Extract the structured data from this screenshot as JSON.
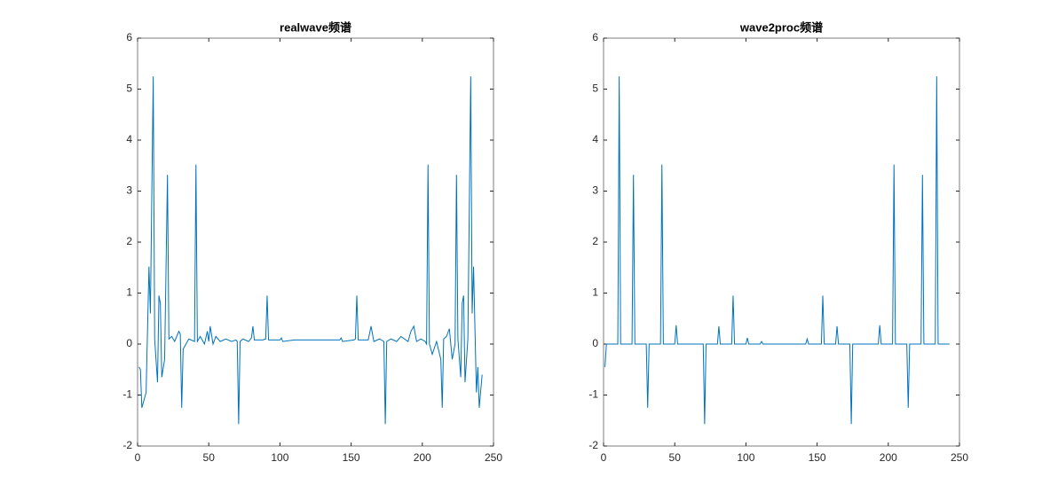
{
  "chart_data": [
    {
      "type": "line",
      "title": "realwave频谱",
      "x": [
        1,
        2,
        3,
        6,
        8,
        9,
        11,
        12,
        14,
        15,
        16,
        17,
        19,
        21,
        22,
        24,
        26,
        29,
        30,
        31,
        32,
        34,
        36,
        40,
        41,
        42,
        44,
        47,
        49,
        50,
        51,
        53,
        55,
        58,
        62,
        66,
        69,
        70,
        71,
        72,
        74,
        78,
        80,
        81,
        82,
        88,
        90,
        91,
        92,
        100,
        101,
        102,
        110,
        120,
        130,
        142,
        143,
        144,
        152,
        153,
        154,
        155,
        162,
        164,
        166,
        170,
        173,
        174,
        175,
        178,
        182,
        185,
        190,
        192,
        194,
        196,
        199,
        202,
        203,
        204,
        205,
        207,
        210,
        213,
        214,
        215,
        217,
        219,
        221,
        223,
        224,
        225,
        227,
        228,
        229,
        230,
        232,
        234,
        235,
        236,
        238,
        239,
        240,
        242
      ],
      "series": [
        {
          "color": "#0072bd",
          "values": [
            -0.45,
            -0.5,
            -1.25,
            -0.95,
            1.52,
            0.6,
            5.25,
            0.1,
            -0.75,
            0.95,
            0.8,
            -0.65,
            -0.3,
            3.32,
            0.1,
            0.15,
            0.05,
            0.25,
            0.2,
            -1.25,
            -0.1,
            0.0,
            0.1,
            0.05,
            3.52,
            0.05,
            0.15,
            0.0,
            0.25,
            0.05,
            0.35,
            0.0,
            0.15,
            0.05,
            0.1,
            0.05,
            0.08,
            0.05,
            -1.57,
            0.05,
            0.1,
            0.05,
            0.12,
            0.35,
            0.08,
            0.08,
            0.1,
            0.95,
            0.08,
            0.08,
            0.12,
            0.05,
            0.08,
            0.08,
            0.08,
            0.08,
            0.12,
            0.05,
            0.08,
            0.1,
            0.95,
            0.08,
            0.08,
            0.35,
            0.05,
            0.1,
            0.05,
            -1.57,
            0.05,
            0.1,
            0.05,
            0.15,
            0.05,
            0.25,
            0.35,
            0.05,
            0.1,
            0.05,
            0.0,
            3.52,
            0.0,
            -0.2,
            0.05,
            -0.3,
            -1.25,
            0.1,
            0.15,
            0.3,
            -0.3,
            0.0,
            3.32,
            0.1,
            -0.65,
            0.8,
            0.95,
            -0.75,
            0.1,
            5.25,
            0.6,
            1.52,
            -0.95,
            -0.45,
            -1.25,
            -0.6
          ]
        }
      ],
      "xlim": [
        0,
        250
      ],
      "xticks": [
        0,
        50,
        100,
        150,
        200,
        250
      ],
      "ylim": [
        -2,
        6
      ],
      "yticks": [
        -2,
        -1,
        0,
        1,
        2,
        3,
        4,
        5,
        6
      ]
    },
    {
      "type": "line",
      "title": "wave2proc频谱",
      "x": [
        1,
        2,
        10,
        11,
        12,
        20,
        21,
        22,
        30,
        31,
        32,
        40,
        41,
        42,
        50,
        51,
        52,
        70,
        71,
        72,
        80,
        81,
        82,
        90,
        91,
        92,
        100,
        101,
        102,
        110,
        111,
        112,
        142,
        143,
        144,
        153,
        154,
        155,
        163,
        164,
        165,
        173,
        174,
        175,
        193,
        194,
        195,
        203,
        204,
        205,
        213,
        214,
        215,
        223,
        224,
        225,
        233,
        234,
        235,
        243
      ],
      "series": [
        {
          "color": "#0072bd",
          "values": [
            -0.45,
            0,
            0,
            5.25,
            0,
            0,
            3.32,
            0,
            0,
            -1.25,
            0,
            0,
            3.52,
            0,
            0,
            0.37,
            0,
            0,
            -1.57,
            0,
            0,
            0.35,
            0,
            0,
            0.95,
            0,
            0,
            0.12,
            0,
            0,
            0.05,
            0,
            0,
            0.1,
            0,
            0,
            0.95,
            0,
            0,
            0.35,
            0,
            0,
            -1.57,
            0,
            0,
            0.37,
            0,
            0,
            3.52,
            0,
            0,
            -1.25,
            0,
            0,
            3.32,
            0,
            0,
            5.25,
            0,
            0
          ]
        }
      ],
      "xlim": [
        0,
        250
      ],
      "xticks": [
        0,
        50,
        100,
        150,
        200,
        250
      ],
      "ylim": [
        -2,
        6
      ],
      "yticks": [
        -2,
        -1,
        0,
        1,
        2,
        3,
        4,
        5,
        6
      ]
    }
  ]
}
